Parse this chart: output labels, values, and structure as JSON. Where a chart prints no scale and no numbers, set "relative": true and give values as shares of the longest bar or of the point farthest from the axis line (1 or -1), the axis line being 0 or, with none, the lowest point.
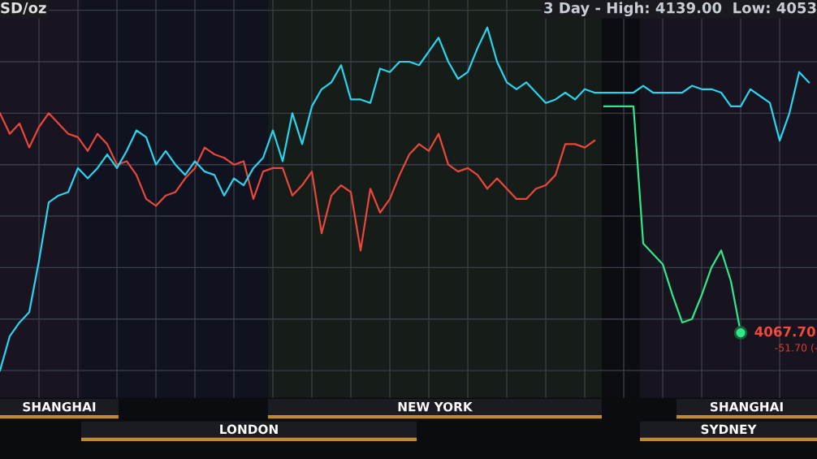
{
  "chart_data": {
    "type": "line",
    "relative": true,
    "title": "3 Day - High: 4139.00  Low: 4053",
    "ylabel": "SD/oz",
    "grid": true,
    "legend": false,
    "marker": "none",
    "line_style": "solid",
    "categories": [
      null,
      null,
      null,
      null,
      null,
      null,
      null,
      null,
      null,
      null,
      null,
      null,
      null,
      null,
      null,
      null,
      null,
      null,
      null,
      null,
      null,
      null,
      null,
      null,
      null,
      null,
      null,
      null,
      null,
      null,
      null,
      null,
      null,
      null,
      null,
      null,
      null,
      null,
      null,
      null,
      null,
      null,
      null,
      null,
      null,
      null,
      null,
      null,
      null,
      null,
      null,
      null,
      null,
      null,
      null,
      null,
      null,
      null,
      null,
      null,
      null,
      null,
      null,
      null,
      null,
      null,
      null,
      null,
      null,
      null,
      null,
      null,
      null,
      null,
      null,
      null,
      null,
      null,
      null,
      null,
      null,
      null,
      null,
      null
    ],
    "series": [
      {
        "color": "#e8473c",
        "values": [
          0.75,
          0.69,
          0.72,
          0.65,
          0.71,
          0.75,
          0.72,
          0.69,
          0.68,
          0.64,
          0.69,
          0.66,
          0.6,
          0.61,
          0.57,
          0.5,
          0.48,
          0.51,
          0.52,
          0.56,
          0.59,
          0.65,
          0.63,
          0.62,
          0.6,
          0.61,
          0.5,
          0.58,
          0.59,
          0.59,
          0.51,
          0.54,
          0.58,
          0.4,
          0.51,
          0.54,
          0.52,
          0.35,
          0.53,
          0.46,
          0.5,
          0.57,
          0.63,
          0.66,
          0.64,
          0.69,
          0.6,
          0.58,
          0.59,
          0.57,
          0.53,
          0.56,
          0.53,
          0.5,
          0.5,
          0.53,
          0.54,
          0.57,
          0.66,
          0.66,
          0.65,
          0.67,
          null,
          null,
          null,
          null,
          null,
          null,
          null,
          null,
          null,
          null,
          null,
          null,
          null,
          null,
          null,
          null,
          null,
          null,
          null,
          null,
          null,
          null
        ]
      },
      {
        "color": "#2ad4ef",
        "values": [
          0,
          0.1,
          0.14,
          0.17,
          0.32,
          0.49,
          0.51,
          0.52,
          0.59,
          0.56,
          0.59,
          0.63,
          0.59,
          0.64,
          0.7,
          0.68,
          0.6,
          0.64,
          0.6,
          0.57,
          0.61,
          0.58,
          0.57,
          0.51,
          0.56,
          0.54,
          0.59,
          0.62,
          0.7,
          0.61,
          0.75,
          0.66,
          0.77,
          0.82,
          0.84,
          0.89,
          0.79,
          0.79,
          0.78,
          0.88,
          0.87,
          0.9,
          0.9,
          0.89,
          0.93,
          0.97,
          0.9,
          0.85,
          0.87,
          0.94,
          1.0,
          0.9,
          0.84,
          0.82,
          0.84,
          0.81,
          0.78,
          0.79,
          0.81,
          0.79,
          0.82,
          0.81,
          0.81,
          0.81,
          0.81,
          0.81,
          0.83,
          0.81,
          0.81,
          0.81,
          0.81,
          0.83,
          0.82,
          0.82,
          0.81,
          0.77,
          0.77,
          0.82,
          0.8,
          0.78,
          0.67,
          0.75,
          0.87,
          0.84
        ]
      },
      {
        "color": "#2ee88a",
        "values": [
          null,
          null,
          null,
          null,
          null,
          null,
          null,
          null,
          null,
          null,
          null,
          null,
          null,
          null,
          null,
          null,
          null,
          null,
          null,
          null,
          null,
          null,
          null,
          null,
          null,
          null,
          null,
          null,
          null,
          null,
          null,
          null,
          null,
          null,
          null,
          null,
          null,
          null,
          null,
          null,
          null,
          null,
          null,
          null,
          null,
          null,
          null,
          null,
          null,
          null,
          null,
          null,
          null,
          null,
          null,
          null,
          null,
          null,
          null,
          null,
          null,
          null,
          0.77,
          0.77,
          0.77,
          0.77,
          0.37,
          0.34,
          0.31,
          0.22,
          0.14,
          0.15,
          0.22,
          0.3,
          0.35,
          0.26,
          0.11,
          null,
          null,
          null,
          null,
          null,
          null,
          null
        ]
      }
    ],
    "annotations": [
      "4067.70",
      "-51.70 (-",
      "SHANGHAI",
      "LONDON",
      "NEW YORK",
      "SHANGHAI",
      "SYDNEY"
    ]
  }
}
